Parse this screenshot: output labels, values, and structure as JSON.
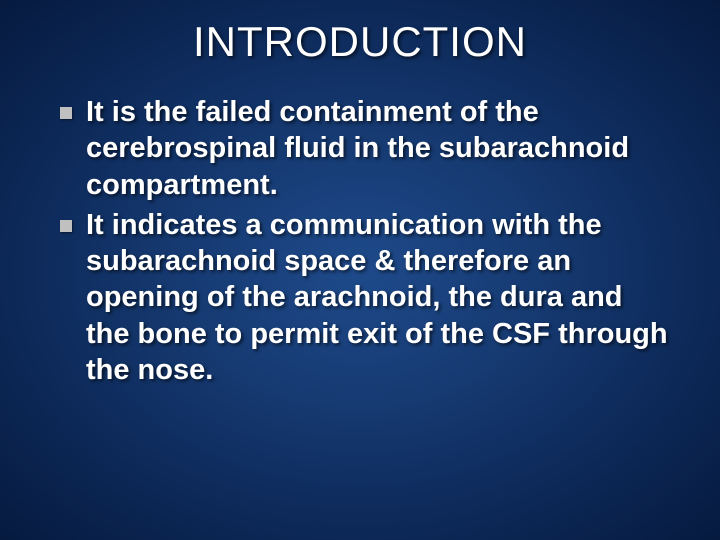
{
  "slide": {
    "background_gradient": [
      "#1e4a8a",
      "#163a72",
      "#0d2a5a",
      "#061a3f"
    ],
    "title": {
      "text": "INTRODUCTION",
      "color": "#ffffff",
      "fontsize": 42,
      "font_weight": 400
    },
    "bullets": [
      {
        "text": "It is the failed containment of the cerebrospinal fluid in the subarachnoid compartment.",
        "marker_color": "#c0c0c0",
        "text_color": "#ffffff",
        "fontsize": 29,
        "font_weight": 700
      },
      {
        "text": "It indicates a communication with the subarachnoid space & therefore an opening of the arachnoid, the dura and the bone to permit exit of the CSF through the nose.",
        "marker_color": "#c0c0c0",
        "text_color": "#ffffff",
        "fontsize": 29,
        "font_weight": 700
      }
    ]
  }
}
